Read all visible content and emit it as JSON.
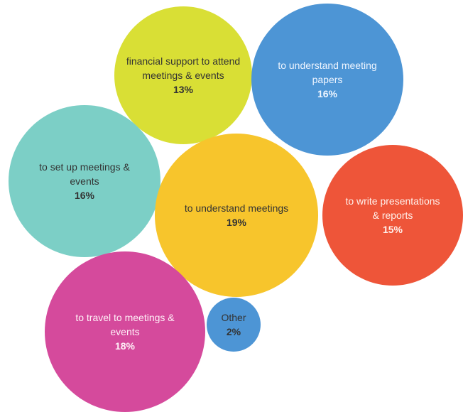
{
  "chart_data": {
    "type": "bubble",
    "title": "",
    "items": [
      {
        "label": [
          "financial support to attend",
          "meetings & events"
        ],
        "value": 13,
        "value_text": "13%",
        "color": "#D9DF35",
        "text_color": "#333333"
      },
      {
        "label": [
          "to understand meeting",
          "papers"
        ],
        "value": 16,
        "value_text": "16%",
        "color": "#4D95D5",
        "text_color": "#EEF5FF"
      },
      {
        "label": [
          "to set up meetings &",
          "events"
        ],
        "value": 16,
        "value_text": "16%",
        "color": "#7CCFC6",
        "text_color": "#333333"
      },
      {
        "label": [
          "to understand meetings"
        ],
        "value": 19,
        "value_text": "19%",
        "color": "#F7C52C",
        "text_color": "#333333"
      },
      {
        "label": [
          "to write presentations",
          "& reports"
        ],
        "value": 15,
        "value_text": "15%",
        "color": "#EE5539",
        "text_color": "#FFF1EC"
      },
      {
        "label": [
          "to travel to meetings &",
          "events"
        ],
        "value": 18,
        "value_text": "18%",
        "color": "#D54A9C",
        "text_color": "#FFF0F7"
      },
      {
        "label": [
          "Other"
        ],
        "value": 2,
        "value_text": "2%",
        "color": "#4D95D5",
        "text_color": "#333333"
      }
    ]
  }
}
